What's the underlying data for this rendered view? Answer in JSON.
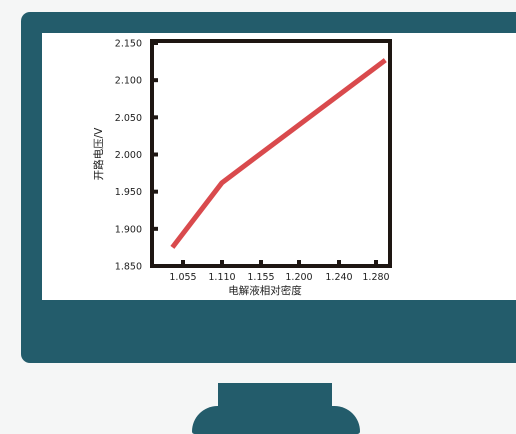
{
  "chart_data": {
    "type": "line",
    "title": "",
    "xlabel": "电解液相对密度",
    "ylabel": "开路电压/V",
    "x_ticks": [
      "1.055",
      "1.110",
      "1.155",
      "1.200",
      "1.240",
      "1.280"
    ],
    "y_ticks": [
      "1.850",
      "1.900",
      "1.950",
      "2.000",
      "2.050",
      "2.100",
      "2.150"
    ],
    "ylim": [
      1.85,
      2.15
    ],
    "grid": false,
    "series": [
      {
        "color": "#d94a4d",
        "points": [
          {
            "x": 1.04,
            "y": 1.875
          },
          {
            "x": 1.11,
            "y": 1.962
          },
          {
            "x": 1.29,
            "y": 2.127
          }
        ]
      }
    ]
  }
}
